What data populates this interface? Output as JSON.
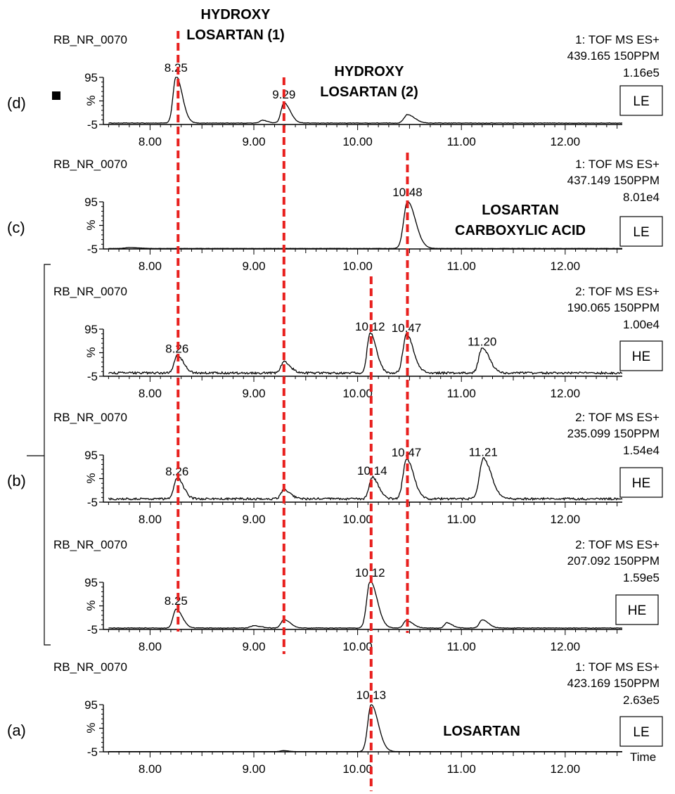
{
  "chart_data": [
    {
      "type": "line",
      "panel_label": "(d)",
      "sample": "RB_NR_0070",
      "function": "1: TOF MS ES+",
      "mass": "439.165 150PPM",
      "intensity": "1.16e5",
      "energy": "LE",
      "y_ticks": [
        "95",
        "%",
        "-5"
      ],
      "x_ticks": [
        "8.00",
        "9.00",
        "10.00",
        "11.00",
        "12.00"
      ],
      "xlim": [
        7.55,
        12.55
      ],
      "ylim": [
        -5,
        100
      ],
      "baseline": 3,
      "noise": 0.5,
      "peaks": [
        {
          "rt": 8.25,
          "height": 100,
          "width": 0.035,
          "label": "8.25"
        },
        {
          "rt": 9.08,
          "height": 6,
          "width": 0.03,
          "label": null
        },
        {
          "rt": 9.29,
          "height": 43,
          "width": 0.035,
          "label": "9.29"
        },
        {
          "rt": 10.48,
          "height": 18,
          "width": 0.04,
          "label": null
        }
      ]
    },
    {
      "type": "line",
      "panel_label": "(c)",
      "sample": "RB_NR_0070",
      "function": "1: TOF MS ES+",
      "mass": "437.149 150PPM",
      "intensity": "8.01e4",
      "energy": "LE",
      "y_ticks": [
        "95",
        "%",
        "-5"
      ],
      "x_ticks": [
        "8.00",
        "9.00",
        "10.00",
        "11.00",
        "12.00"
      ],
      "xlim": [
        7.55,
        12.55
      ],
      "ylim": [
        -5,
        100
      ],
      "baseline": 1,
      "noise": 0.2,
      "peaks": [
        {
          "rt": 7.8,
          "height": 2,
          "width": 0.05,
          "label": null
        },
        {
          "rt": 10.48,
          "height": 100,
          "width": 0.045,
          "label": "10.48"
        }
      ]
    },
    {
      "type": "line",
      "panel_label": "",
      "sample": "RB_NR_0070",
      "function": "2: TOF MS ES+",
      "mass": "190.065 150PPM",
      "intensity": "1.00e4",
      "energy": "HE",
      "y_ticks": [
        "95",
        "%",
        "-5"
      ],
      "x_ticks": [
        "8.00",
        "9.00",
        "10.00",
        "11.00",
        "12.00"
      ],
      "xlim": [
        7.55,
        12.55
      ],
      "ylim": [
        -5,
        100
      ],
      "baseline": 7,
      "noise": 2.2,
      "peaks": [
        {
          "rt": 8.26,
          "height": 38,
          "width": 0.035,
          "label": "8.26"
        },
        {
          "rt": 9.29,
          "height": 25,
          "width": 0.035,
          "label": null
        },
        {
          "rt": 10.12,
          "height": 85,
          "width": 0.035,
          "label": "10.12"
        },
        {
          "rt": 10.47,
          "height": 82,
          "width": 0.04,
          "label": "10.47"
        },
        {
          "rt": 11.2,
          "height": 53,
          "width": 0.04,
          "label": "11.20"
        }
      ]
    },
    {
      "type": "line",
      "panel_label": "(b)",
      "sample": "RB_NR_0070",
      "function": "2: TOF MS ES+",
      "mass": "235.099 150PPM",
      "intensity": "1.54e4",
      "energy": "HE",
      "y_ticks": [
        "95",
        "%",
        "-5"
      ],
      "x_ticks": [
        "8.00",
        "9.00",
        "10.00",
        "11.00",
        "12.00"
      ],
      "xlim": [
        7.55,
        12.55
      ],
      "ylim": [
        -5,
        100
      ],
      "baseline": 7,
      "noise": 2.2,
      "peaks": [
        {
          "rt": 8.26,
          "height": 45,
          "width": 0.035,
          "label": "8.26"
        },
        {
          "rt": 9.29,
          "height": 20,
          "width": 0.035,
          "label": null
        },
        {
          "rt": 10.14,
          "height": 46,
          "width": 0.035,
          "label": "10.14"
        },
        {
          "rt": 10.47,
          "height": 85,
          "width": 0.04,
          "label": "10.47"
        },
        {
          "rt": 11.21,
          "height": 86,
          "width": 0.045,
          "label": "11.21"
        }
      ]
    },
    {
      "type": "line",
      "panel_label": "",
      "sample": "RB_NR_0070",
      "function": "2: TOF MS ES+",
      "mass": "207.092 150PPM",
      "intensity": "1.59e5",
      "energy": "HE",
      "y_ticks": [
        "95",
        "%",
        "-5"
      ],
      "x_ticks": [
        "8.00",
        "9.00",
        "10.00",
        "11.00",
        "12.00"
      ],
      "xlim": [
        7.55,
        12.55
      ],
      "ylim": [
        -5,
        100
      ],
      "baseline": 3,
      "noise": 0.6,
      "peaks": [
        {
          "rt": 8.25,
          "height": 40,
          "width": 0.035,
          "label": "8.25"
        },
        {
          "rt": 9.0,
          "height": 5,
          "width": 0.04,
          "label": null
        },
        {
          "rt": 9.29,
          "height": 18,
          "width": 0.035,
          "label": null
        },
        {
          "rt": 10.12,
          "height": 100,
          "width": 0.04,
          "label": "10.12"
        },
        {
          "rt": 10.47,
          "height": 16,
          "width": 0.035,
          "label": null
        },
        {
          "rt": 10.86,
          "height": 11,
          "width": 0.03,
          "label": null
        },
        {
          "rt": 11.2,
          "height": 17,
          "width": 0.035,
          "label": null
        }
      ]
    },
    {
      "type": "line",
      "panel_label": "(a)",
      "sample": "RB_NR_0070",
      "function": "1: TOF MS ES+",
      "mass": "423.169 150PPM",
      "intensity": "2.63e5",
      "energy": "LE",
      "y_ticks": [
        "95",
        "%",
        "-5"
      ],
      "x_ticks": [
        "8.00",
        "9.00",
        "10.00",
        "11.00",
        "12.00"
      ],
      "xlabel": "Time",
      "xlim": [
        7.55,
        12.55
      ],
      "ylim": [
        -5,
        100
      ],
      "baseline": 0.5,
      "noise": 0.15,
      "peaks": [
        {
          "rt": 9.28,
          "height": 2,
          "width": 0.03,
          "label": null
        },
        {
          "rt": 10.13,
          "height": 100,
          "width": 0.04,
          "label": "10.13"
        }
      ]
    }
  ],
  "annotations": {
    "compounds": [
      {
        "rt": 8.27,
        "lines": [
          "HYDROXY",
          "LOSARTAN (1)"
        ]
      },
      {
        "rt": 9.29,
        "lines": [
          "HYDROXY",
          "LOSARTAN (2)"
        ]
      },
      {
        "rt": 10.48,
        "lines": [
          "LOSARTAN",
          "CARBOXYLIC  ACID"
        ]
      },
      {
        "rt": 10.13,
        "lines": [
          "LOSARTAN"
        ]
      }
    ],
    "marker_lines_rt": [
      8.27,
      9.29,
      10.13,
      10.48
    ],
    "marker_color": "#e8201e",
    "trace_color": "#000000",
    "bracket_label": "(b)"
  }
}
